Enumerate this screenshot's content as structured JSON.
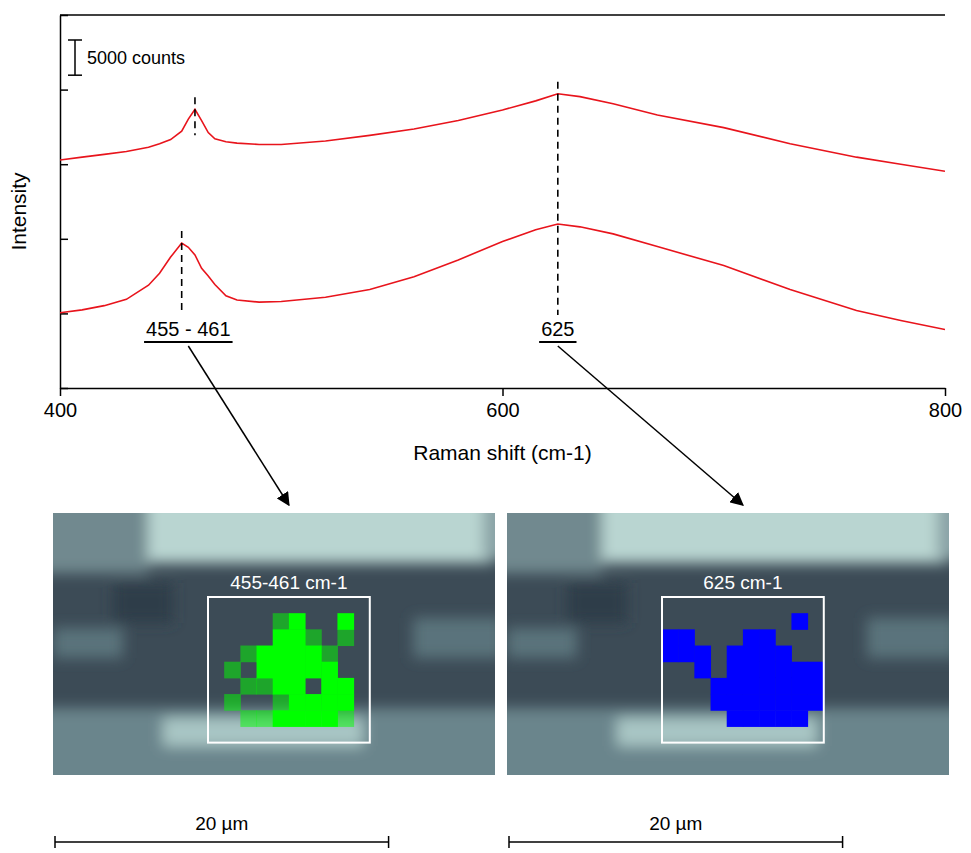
{
  "chart_data": {
    "type": "line",
    "x_label": "Raman shift (cm-1)",
    "y_label": "Intensity",
    "xlim": [
      400,
      800
    ],
    "xticks": [
      400,
      600,
      800
    ],
    "ylim": [
      0,
      53000
    ],
    "yticks": [
      0,
      10600,
      21200,
      31800,
      42400,
      53000
    ],
    "tick_labels": "x",
    "x": [
      400,
      410,
      420,
      430,
      440,
      445,
      450,
      455,
      458,
      461,
      464,
      467,
      470,
      475,
      480,
      490,
      500,
      520,
      540,
      560,
      580,
      600,
      615,
      625,
      635,
      650,
      670,
      700,
      730,
      760,
      780,
      800
    ],
    "series": [
      {
        "color": "#e8141c",
        "values": [
          32400,
          32800,
          33200,
          33600,
          34200,
          34700,
          35300,
          36500,
          38200,
          39600,
          38000,
          36300,
          35400,
          35000,
          34800,
          34600,
          34600,
          35100,
          35900,
          36800,
          38000,
          39500,
          40800,
          41800,
          41400,
          40400,
          38800,
          37000,
          34700,
          32800,
          31800,
          30800
        ]
      },
      {
        "color": "#e8141c",
        "values": [
          10700,
          11100,
          11700,
          12600,
          14600,
          16300,
          18600,
          20600,
          20000,
          18900,
          17000,
          15900,
          14700,
          13100,
          12500,
          12200,
          12300,
          12900,
          14000,
          15800,
          18200,
          20800,
          22500,
          23300,
          22900,
          21900,
          20100,
          17400,
          14000,
          11000,
          9600,
          8300
        ]
      }
    ],
    "annotations": [
      {
        "text": "455 - 461",
        "x": [
          455,
          461
        ]
      },
      {
        "text": "625",
        "x": [
          625
        ]
      }
    ],
    "scale_bar": {
      "label": "5000 counts",
      "value": 5000
    }
  },
  "micrographs": {
    "field_width": 26.5,
    "map_width": 9.7,
    "scale_bar": {
      "label": "20 µm",
      "length": 20
    },
    "maps": [
      {
        "label": "455-461 cm-1",
        "color": "#00ff00",
        "cells": [
          [
            0,
            0,
            0,
            0,
            0,
            0,
            0,
            0,
            0,
            0
          ],
          [
            0,
            0,
            0,
            0,
            0.5,
            1,
            0,
            0,
            1,
            0
          ],
          [
            0,
            0,
            0,
            0,
            1,
            1,
            0.5,
            0,
            0.5,
            0
          ],
          [
            0,
            0,
            0.5,
            1,
            1,
            1,
            1,
            0.5,
            0,
            0
          ],
          [
            0,
            0.5,
            0,
            1,
            1,
            1,
            1,
            1,
            0,
            0
          ],
          [
            0,
            0,
            0.5,
            0.5,
            1,
            1,
            0,
            1,
            1,
            0
          ],
          [
            0,
            0.5,
            0,
            0,
            0.5,
            1,
            1,
            1,
            1,
            0
          ],
          [
            0,
            0,
            0.5,
            0.5,
            1,
            1,
            1,
            1,
            0.5,
            0
          ],
          [
            0,
            0,
            0,
            0,
            0,
            0,
            0,
            0,
            0,
            0
          ]
        ]
      },
      {
        "label": "625 cm-1",
        "color": "#0000ff",
        "cells": [
          [
            0,
            0,
            0,
            0,
            0,
            0,
            0,
            0,
            0,
            0
          ],
          [
            0,
            0,
            0,
            0,
            0,
            0,
            0,
            0,
            1,
            0
          ],
          [
            1,
            1,
            0,
            0,
            0,
            1,
            1,
            0,
            0,
            0
          ],
          [
            1,
            1,
            1,
            0,
            1,
            1,
            1,
            1,
            0,
            0
          ],
          [
            0,
            0,
            1,
            0,
            1,
            1,
            1,
            1,
            1,
            1
          ],
          [
            0,
            0,
            0,
            1,
            1,
            1,
            1,
            1,
            1,
            1
          ],
          [
            0,
            0,
            0,
            1,
            1,
            1,
            1,
            1,
            1,
            1
          ],
          [
            0,
            0,
            0,
            0,
            1,
            1,
            1,
            1,
            1,
            0
          ],
          [
            0,
            0,
            0,
            0,
            0,
            0,
            0,
            0,
            0,
            0
          ]
        ]
      }
    ]
  }
}
